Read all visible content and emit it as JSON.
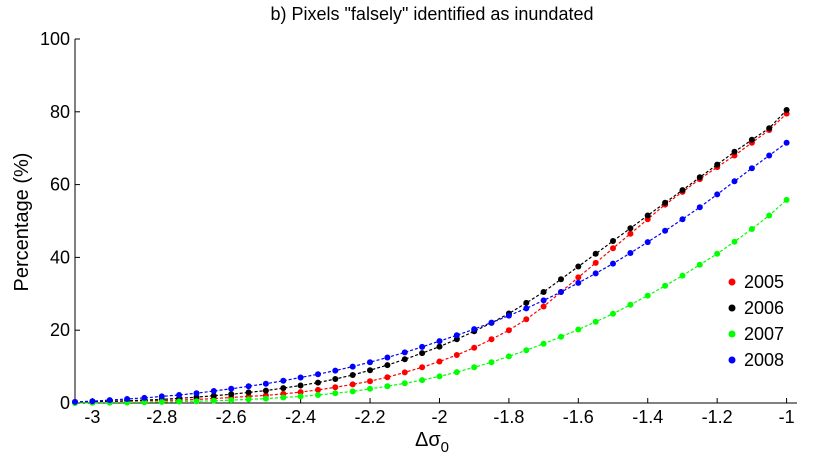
{
  "chart_data": {
    "type": "line",
    "title": "b) Pixels \"falsely\" identified as inundated",
    "xlabel_base": "Δσ",
    "xlabel_sub": "0",
    "ylabel": "Percentage (%)",
    "xlim": [
      -3.05,
      -0.97
    ],
    "ylim": [
      0,
      100
    ],
    "xticks": [
      -3,
      -2.8,
      -2.6,
      -2.4,
      -2.2,
      -2,
      -1.8,
      -1.6,
      -1.4,
      -1.2,
      -1
    ],
    "xtick_labels": [
      "-3",
      "-2.8",
      "-2.6",
      "-2.4",
      "-2.2",
      "-2",
      "-1.8",
      "-1.6",
      "-1.4",
      "-1.2",
      "-1"
    ],
    "yticks": [
      0,
      20,
      40,
      60,
      80,
      100
    ],
    "ytick_labels": [
      "0",
      "20",
      "40",
      "60",
      "80",
      "100"
    ],
    "grid": false,
    "legend_position": "right",
    "marker": "dot",
    "line_style": "dashed",
    "x": [
      -3.05,
      -3.0,
      -2.95,
      -2.9,
      -2.85,
      -2.8,
      -2.75,
      -2.7,
      -2.65,
      -2.6,
      -2.55,
      -2.5,
      -2.45,
      -2.4,
      -2.35,
      -2.3,
      -2.25,
      -2.2,
      -2.15,
      -2.1,
      -2.05,
      -2.0,
      -1.95,
      -1.9,
      -1.85,
      -1.8,
      -1.75,
      -1.7,
      -1.65,
      -1.6,
      -1.55,
      -1.5,
      -1.45,
      -1.4,
      -1.35,
      -1.3,
      -1.25,
      -1.2,
      -1.15,
      -1.1,
      -1.05,
      -1.0
    ],
    "series": [
      {
        "name": "2005",
        "color": "#ff0000",
        "values": [
          0.2,
          0.3,
          0.4,
          0.5,
          0.6,
          0.7,
          0.8,
          1.0,
          1.2,
          1.5,
          1.8,
          2.1,
          2.5,
          3.0,
          3.6,
          4.3,
          5.1,
          6.0,
          7.1,
          8.4,
          9.8,
          11.4,
          13.2,
          15.2,
          17.5,
          20.0,
          23.0,
          26.5,
          30.5,
          34.5,
          38.5,
          42.5,
          46.5,
          50.5,
          54.5,
          58.0,
          61.5,
          64.8,
          68.0,
          71.5,
          75.0,
          79.5
        ]
      },
      {
        "name": "2006",
        "color": "#000000",
        "values": [
          0.2,
          0.3,
          0.5,
          0.6,
          0.8,
          1.0,
          1.3,
          1.6,
          2.0,
          2.4,
          2.9,
          3.4,
          4.1,
          4.8,
          5.6,
          6.6,
          7.7,
          9.0,
          10.4,
          12.0,
          13.7,
          15.5,
          17.5,
          19.7,
          22.0,
          24.6,
          27.5,
          30.5,
          34.0,
          37.5,
          41.0,
          44.5,
          48.0,
          51.5,
          55.0,
          58.5,
          62.0,
          65.5,
          69.0,
          72.3,
          75.5,
          80.5
        ]
      },
      {
        "name": "2007",
        "color": "#00ff00",
        "values": [
          0.0,
          0.05,
          0.1,
          0.15,
          0.2,
          0.3,
          0.4,
          0.5,
          0.6,
          0.8,
          1.0,
          1.2,
          1.5,
          1.8,
          2.2,
          2.7,
          3.2,
          3.9,
          4.6,
          5.4,
          6.3,
          7.3,
          8.5,
          9.8,
          11.2,
          12.8,
          14.5,
          16.3,
          18.2,
          20.2,
          22.3,
          24.5,
          27.0,
          29.5,
          32.2,
          35.0,
          38.0,
          41.0,
          44.3,
          47.8,
          51.5,
          55.8
        ]
      },
      {
        "name": "2008",
        "color": "#0000ff",
        "values": [
          0.3,
          0.5,
          0.8,
          1.1,
          1.4,
          1.8,
          2.2,
          2.7,
          3.3,
          3.9,
          4.6,
          5.3,
          6.1,
          7.0,
          7.9,
          8.9,
          10.0,
          11.2,
          12.5,
          13.9,
          15.4,
          17.0,
          18.6,
          20.3,
          22.1,
          24.0,
          26.0,
          28.2,
          30.5,
          33.0,
          35.6,
          38.3,
          41.2,
          44.2,
          47.3,
          50.5,
          53.8,
          57.3,
          60.9,
          64.5,
          68.0,
          71.5
        ]
      }
    ]
  }
}
